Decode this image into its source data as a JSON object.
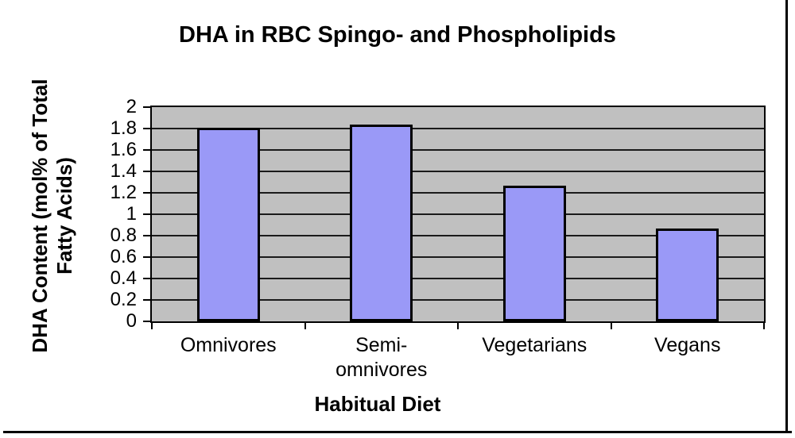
{
  "axis": {
    "x_title": "Habitual Diet",
    "y_title_line1": "DHA Content (mol% of Total",
    "y_title_line2": "Fatty Acids)"
  },
  "chart_data": {
    "type": "bar",
    "title": "DHA in RBC Spingo- and Phospholipids",
    "xlabel": "Habitual Diet",
    "ylabel": "DHA Content (mol% of Total Fatty Acids)",
    "categories": [
      "Omnivores",
      "Semi-omnivores",
      "Vegetarians",
      "Vegans"
    ],
    "values": [
      1.81,
      1.84,
      1.27,
      0.87
    ],
    "ylim": [
      0,
      2
    ],
    "ytick_step": 0.2,
    "ytick_labels": [
      "0",
      "0.2",
      "0.4",
      "0.6",
      "0.8",
      "1",
      "1.2",
      "1.4",
      "1.6",
      "1.8",
      "2"
    ],
    "grid": true,
    "legend": false,
    "plot_bg": "#c0c0c0",
    "bar_fill": "#9a99f7",
    "bar_border": "#000000",
    "gridline_color": "#1a1a1a",
    "text_color": "#000000"
  }
}
